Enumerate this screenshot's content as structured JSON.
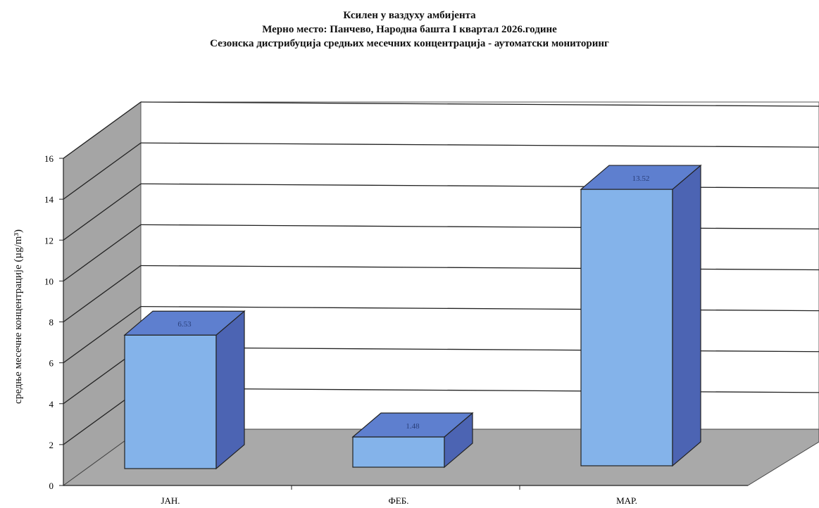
{
  "titles": {
    "line1": "Ксилен у ваздуху амбијента",
    "line2": "Мерно место: Панчево, Народна башта I квартал 2026.године",
    "line3": "Сезонска дистрибуција средњих месечних концентрација - аутоматски мониторинг"
  },
  "chart_data": {
    "type": "bar",
    "style": "3d",
    "title": "Ксилен у ваздуху амбијента",
    "subtitle": "Мерно место: Панчево, Народна башта I квартал 2026.године / Сезонска дистрибуција средњих месечних концентрација - аутоматски мониторинг",
    "categories": [
      "ЈАН.",
      "ФЕБ.",
      "МАР."
    ],
    "values": [
      6.53,
      1.48,
      13.52
    ],
    "data_labels": [
      "6.53",
      "1.48",
      "13.52"
    ],
    "xlabel": "",
    "ylabel": "средње месечне концентрације (µg/m³)",
    "ylim": [
      0,
      16
    ],
    "yticks": [
      0,
      2,
      4,
      6,
      8,
      10,
      12,
      14,
      16
    ],
    "grid": true,
    "legend": "none"
  },
  "colors": {
    "bar_front": "#84b3ea",
    "bar_top": "#5e7fcf",
    "bar_side": "#4c64b3",
    "floor": "#a9a9a9",
    "wall_left": "#a5a5a5",
    "wall_back": "#ffffff"
  }
}
